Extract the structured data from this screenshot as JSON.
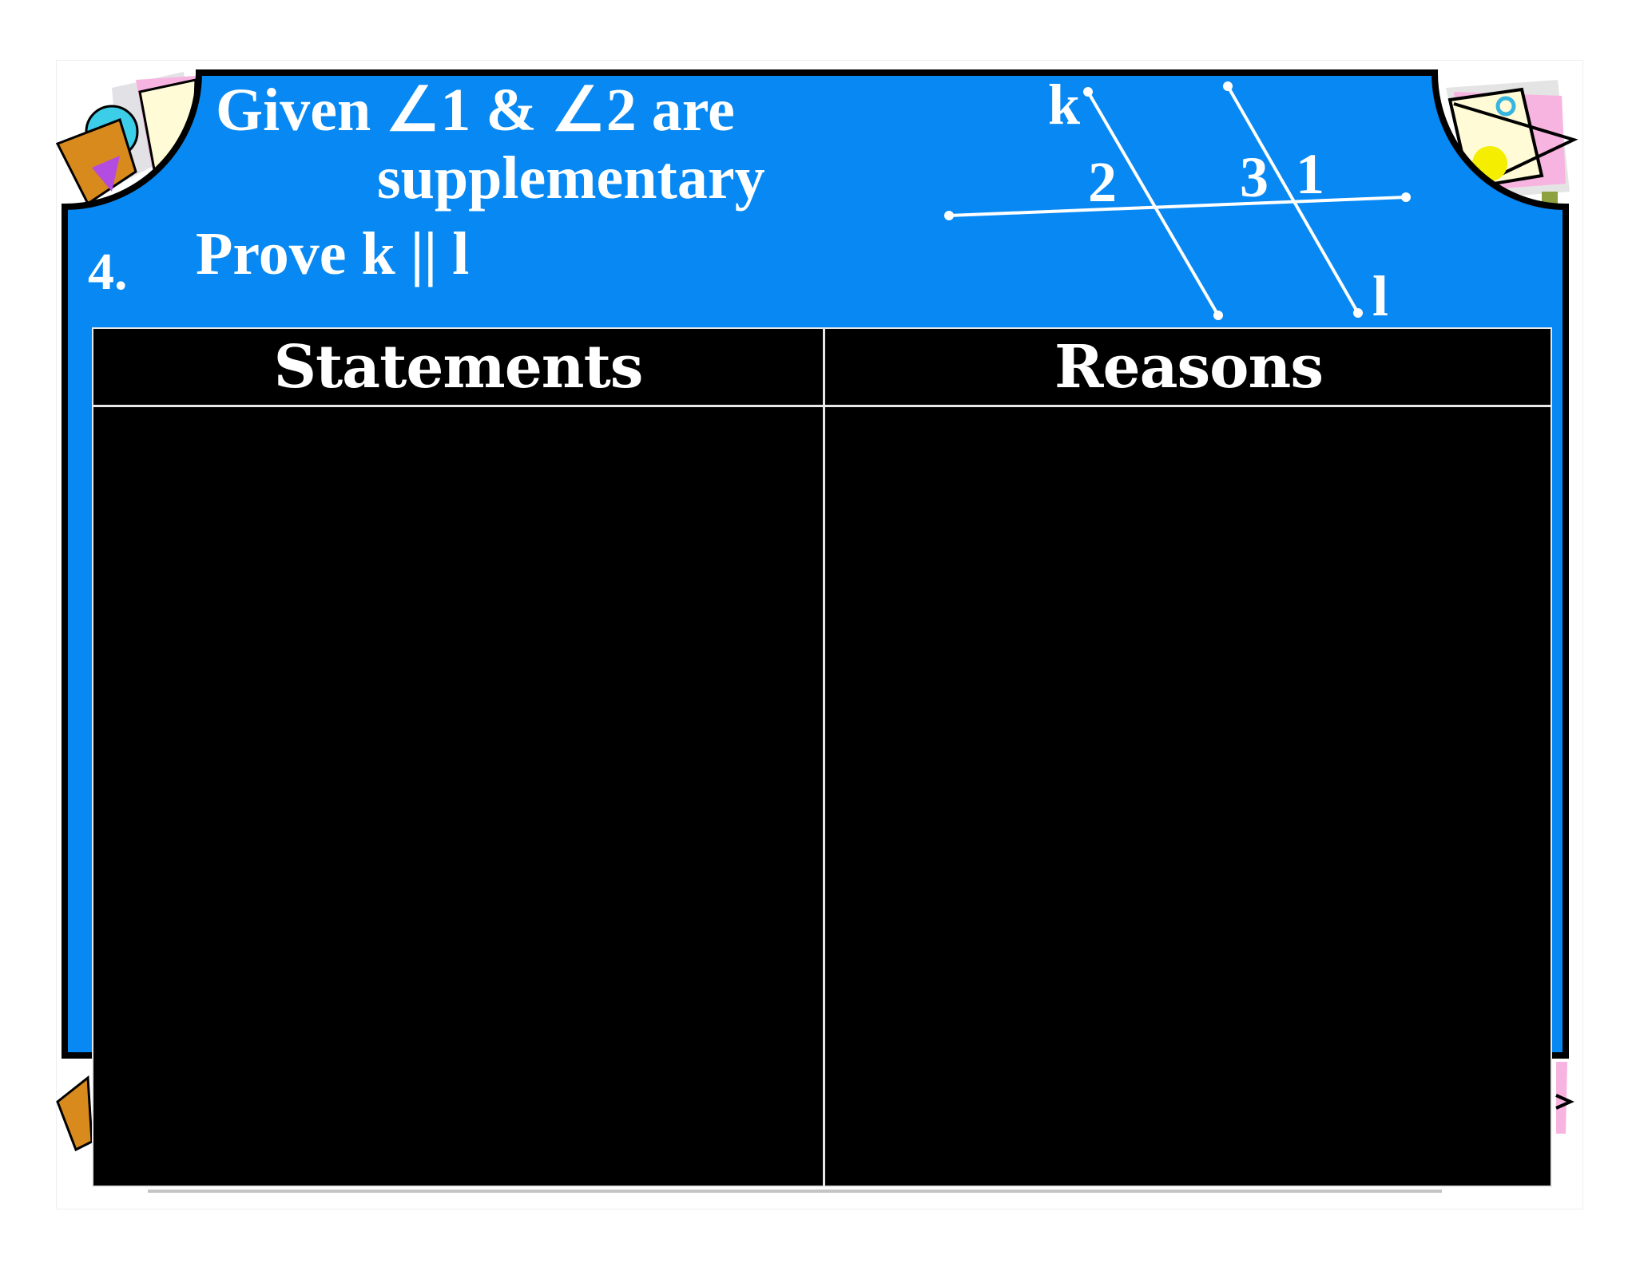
{
  "problem": {
    "number": "4.",
    "given_line1": "Given ∠1 & ∠2 are",
    "given_line2": "supplementary",
    "prove": "Prove  k || l"
  },
  "diagram": {
    "line_labels": {
      "k": "k",
      "l": "l"
    },
    "angle_labels": {
      "a2": "2",
      "a3": "3",
      "a1": "1"
    }
  },
  "table": {
    "headers": [
      "Statements",
      "Reasons"
    ],
    "rows": []
  },
  "colors": {
    "panel": "#0788f2",
    "border": "#000000",
    "table": "#000000",
    "text": "#ffffff"
  }
}
